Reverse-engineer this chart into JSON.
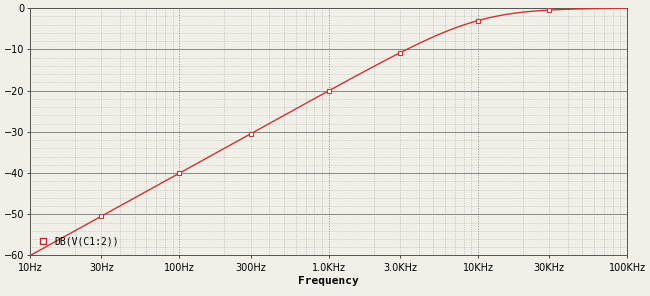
{
  "title": "",
  "xlabel": "Frequency",
  "ylabel": "",
  "legend_label": "DB(V(C1:2))",
  "legend_marker_color": "#cc2222",
  "line_color": "#cc3333",
  "marker_color": "#cc3333",
  "bg_color": "#f0f0e8",
  "plot_bg_color": "#f0f0e8",
  "grid_major_color": "#888888",
  "grid_dot_color": "#aaaaaa",
  "xmin_hz": 10,
  "xmax_hz": 100000,
  "ymin": -60,
  "ymax": 0,
  "yticks": [
    0,
    -10,
    -20,
    -30,
    -40,
    -50,
    -60
  ],
  "filter_order": 1,
  "cutoff_hz": 10000,
  "xtick_positions": [
    10,
    30,
    100,
    300,
    1000,
    3000,
    10000,
    30000,
    100000
  ],
  "xtick_labels": [
    "10Hz",
    "30Hz",
    "100Hz",
    "300Hz",
    "1.0KHz",
    "3.0KHz",
    "10KHz",
    "30KHz",
    "100KHz"
  ],
  "major_vgrid_hz": [
    10,
    100,
    1000,
    10000,
    100000
  ],
  "marker_freqs": [
    30,
    100,
    300,
    1000,
    3000,
    10000,
    30000
  ],
  "fontsize_ticks": 7,
  "fontsize_xlabel": 8,
  "fontsize_legend": 7
}
